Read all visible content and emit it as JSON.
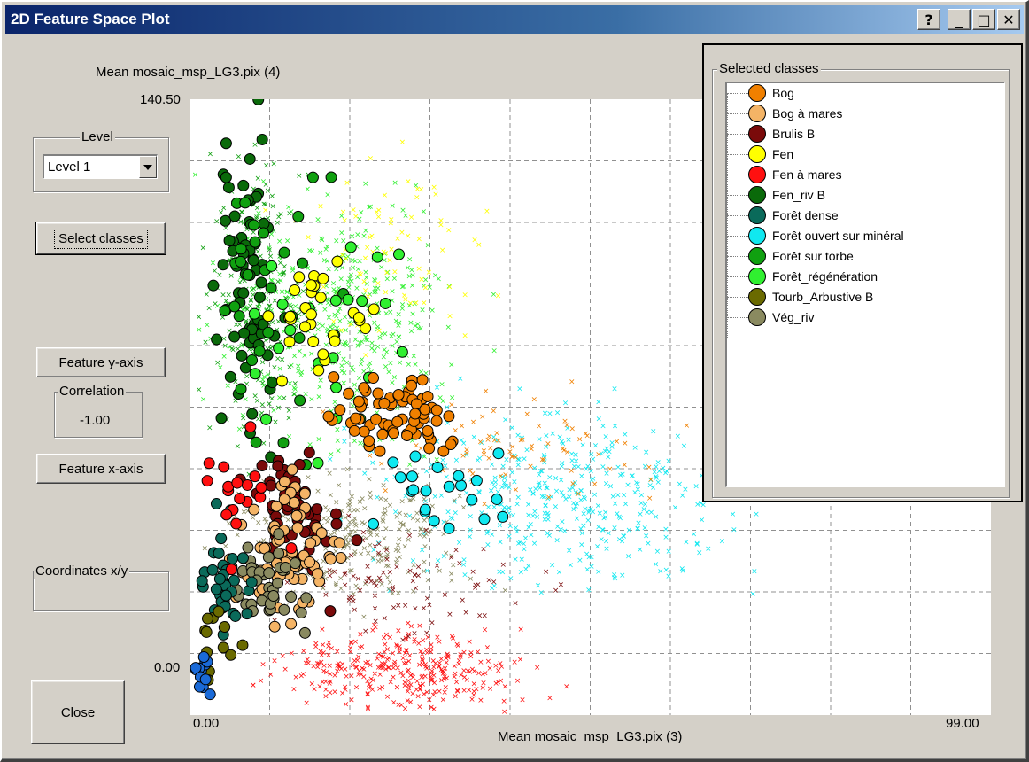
{
  "window": {
    "title": "2D Feature Space Plot",
    "controls": {
      "help": "?",
      "minimize": "_",
      "maximize": "□",
      "close": "✕"
    }
  },
  "left": {
    "level_label": "Level",
    "level_value": "Level 1",
    "select_classes": "Select classes",
    "feature_y": "Feature y-axis",
    "correlation_label": "Correlation",
    "correlation_value": "-1.00",
    "feature_x": "Feature x-axis",
    "coordinates_label": "Coordinates x/y",
    "coordinates_value": "",
    "close": "Close"
  },
  "panel": {
    "title": "Selected classes",
    "classes": [
      {
        "name": "Bog",
        "color": "#f08000"
      },
      {
        "name": "Bog à mares",
        "color": "#f4b466"
      },
      {
        "name": "Brulis B",
        "color": "#7a0a0a"
      },
      {
        "name": "Fen",
        "color": "#ffff00"
      },
      {
        "name": "Fen à mares",
        "color": "#ff1010"
      },
      {
        "name": "Fen_riv B",
        "color": "#0a6a0a"
      },
      {
        "name": "Forêt dense",
        "color": "#0a6a5a"
      },
      {
        "name": "Forêt ouvert sur minéral",
        "color": "#10e8f0"
      },
      {
        "name": "Forêt sur torbe",
        "color": "#10a010"
      },
      {
        "name": "Forêt_régénération",
        "color": "#30f030"
      },
      {
        "name": "Tourb_Arbustive B",
        "color": "#6a6a00"
      },
      {
        "name": "Vég_riv",
        "color": "#8a8a60"
      }
    ]
  },
  "chart_data": {
    "type": "scatter",
    "ylabel": "Mean mosaic_msp_LG3.pix (4)",
    "xlabel": "Mean mosaic_msp_LG3.pix (3)",
    "xlim": [
      0.0,
      99.0
    ],
    "ylim": [
      0.0,
      140.5
    ],
    "x_tick_labels": [
      "0.00",
      "99.00"
    ],
    "y_tick_labels": [
      "0.00",
      "140.50"
    ],
    "grid": true,
    "series": [
      {
        "name": "Fen_riv B",
        "color": "#0a6a0a",
        "center": [
          7,
          100
        ],
        "spread": [
          3,
          28
        ],
        "n": 70,
        "marker": "circle"
      },
      {
        "name": "Forêt sur torbe",
        "color": "#10a010",
        "center": [
          10,
          95
        ],
        "spread": [
          6,
          25
        ],
        "n": 30,
        "marker": "circle"
      },
      {
        "name": "Forêt_régénération",
        "color": "#30f030",
        "center": [
          18,
          90
        ],
        "spread": [
          10,
          20
        ],
        "n": 25,
        "marker": "circle"
      },
      {
        "name": "Fen",
        "color": "#ffff00",
        "center": [
          16,
          92
        ],
        "spread": [
          6,
          14
        ],
        "n": 30,
        "marker": "circle"
      },
      {
        "name": "Bog",
        "color": "#f08000",
        "center": [
          26,
          68
        ],
        "spread": [
          7,
          7
        ],
        "n": 70,
        "marker": "circle"
      },
      {
        "name": "Forêt ouvert sur minéral",
        "color": "#10e8f0",
        "center": [
          31,
          52
        ],
        "spread": [
          7,
          7
        ],
        "n": 22,
        "marker": "circle"
      },
      {
        "name": "Brulis B",
        "color": "#7a0a0a",
        "center": [
          13,
          48
        ],
        "spread": [
          5,
          13
        ],
        "n": 55,
        "marker": "circle"
      },
      {
        "name": "Bog à mares",
        "color": "#f4b466",
        "center": [
          13,
          38
        ],
        "spread": [
          5,
          13
        ],
        "n": 70,
        "marker": "circle"
      },
      {
        "name": "Vég_riv",
        "color": "#8a8a60",
        "center": [
          10,
          30
        ],
        "spread": [
          4,
          10
        ],
        "n": 40,
        "marker": "circle"
      },
      {
        "name": "Forêt dense",
        "color": "#0a6a5a",
        "center": [
          4,
          28
        ],
        "spread": [
          3,
          12
        ],
        "n": 35,
        "marker": "circle"
      },
      {
        "name": "Fen à mares",
        "color": "#ff1010",
        "center": [
          7,
          48
        ],
        "spread": [
          3,
          12
        ],
        "n": 18,
        "marker": "circle"
      },
      {
        "name": "Tourb_Arbustive B",
        "color": "#6a6a00",
        "center": [
          3,
          15
        ],
        "spread": [
          3,
          10
        ],
        "n": 12,
        "marker": "circle"
      },
      {
        "name": "",
        "color": "#1a6ad8",
        "center": [
          1.5,
          10
        ],
        "spread": [
          1.2,
          6
        ],
        "n": 14,
        "marker": "circle"
      },
      {
        "name": "Fen à mares",
        "color": "#ff1010",
        "center": [
          25,
          10
        ],
        "spread": [
          13,
          7
        ],
        "n": 320,
        "marker": "x"
      },
      {
        "name": "Forêt ouvert sur minéral",
        "color": "#10e8f0",
        "center": [
          45,
          50
        ],
        "spread": [
          20,
          16
        ],
        "n": 420,
        "marker": "x"
      },
      {
        "name": "Forêt_régénération",
        "color": "#30f030",
        "center": [
          18,
          90
        ],
        "spread": [
          12,
          22
        ],
        "n": 420,
        "marker": "x"
      },
      {
        "name": "Forêt sur torbe",
        "color": "#10a010",
        "center": [
          8,
          95
        ],
        "spread": [
          5,
          25
        ],
        "n": 260,
        "marker": "x"
      },
      {
        "name": "Fen",
        "color": "#ffff00",
        "center": [
          25,
          105
        ],
        "spread": [
          10,
          18
        ],
        "n": 80,
        "marker": "x"
      },
      {
        "name": "Vég_riv",
        "color": "#8a8a60",
        "center": [
          20,
          40
        ],
        "spread": [
          12,
          12
        ],
        "n": 260,
        "marker": "x"
      },
      {
        "name": "Brulis B",
        "color": "#7a0a0a",
        "center": [
          25,
          30
        ],
        "spread": [
          15,
          10
        ],
        "n": 100,
        "marker": "x"
      },
      {
        "name": "Bog",
        "color": "#f08000",
        "center": [
          40,
          60
        ],
        "spread": [
          14,
          10
        ],
        "n": 80,
        "marker": "x"
      }
    ]
  }
}
